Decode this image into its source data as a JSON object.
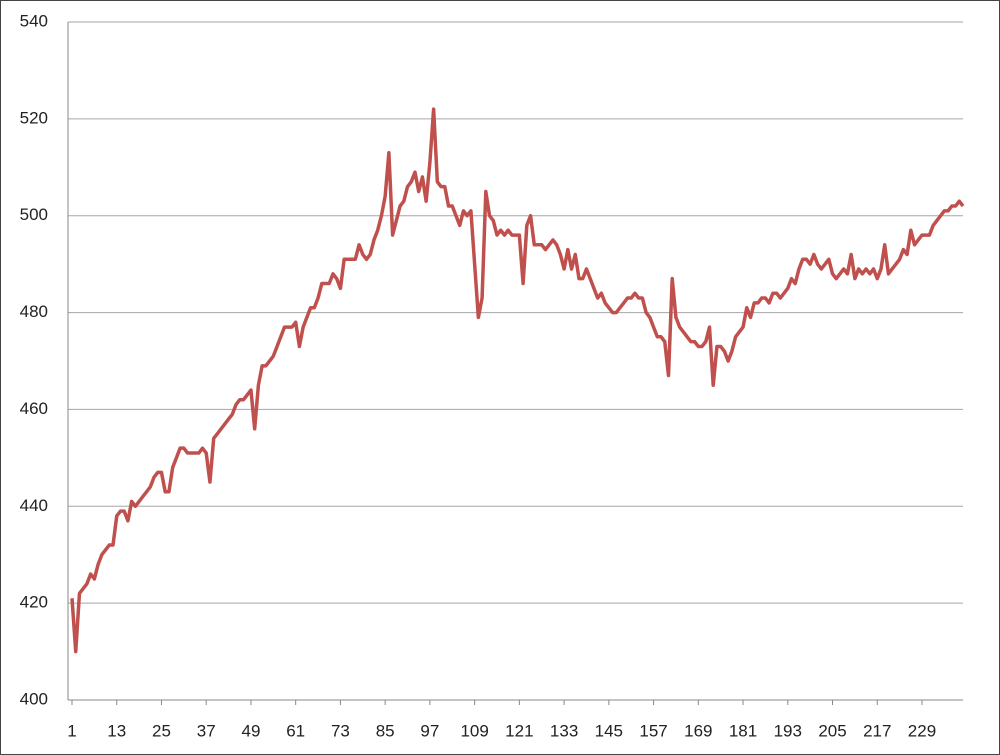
{
  "chart_data": {
    "type": "line",
    "x": [
      1,
      2,
      3,
      4,
      5,
      6,
      7,
      8,
      9,
      10,
      11,
      12,
      13,
      14,
      15,
      16,
      17,
      18,
      19,
      20,
      21,
      22,
      23,
      24,
      25,
      26,
      27,
      28,
      29,
      30,
      31,
      32,
      33,
      34,
      35,
      36,
      37,
      38,
      39,
      40,
      41,
      42,
      43,
      44,
      45,
      46,
      47,
      48,
      49,
      50,
      51,
      52,
      53,
      54,
      55,
      56,
      57,
      58,
      59,
      60,
      61,
      62,
      63,
      64,
      65,
      66,
      67,
      68,
      69,
      70,
      71,
      72,
      73,
      74,
      75,
      76,
      77,
      78,
      79,
      80,
      81,
      82,
      83,
      84,
      85,
      86,
      87,
      88,
      89,
      90,
      91,
      92,
      93,
      94,
      95,
      96,
      97,
      98,
      99,
      100,
      101,
      102,
      103,
      104,
      105,
      106,
      107,
      108,
      109,
      110,
      111,
      112,
      113,
      114,
      115,
      116,
      117,
      118,
      119,
      120,
      121,
      122,
      123,
      124,
      125,
      126,
      127,
      128,
      129,
      130,
      131,
      132,
      133,
      134,
      135,
      136,
      137,
      138,
      139,
      140,
      141,
      142,
      143,
      144,
      145,
      146,
      147,
      148,
      149,
      150,
      151,
      152,
      153,
      154,
      155,
      156,
      157,
      158,
      159,
      160,
      161,
      162,
      163,
      164,
      165,
      166,
      167,
      168,
      169,
      170,
      171,
      172,
      173,
      174,
      175,
      176,
      177,
      178,
      179,
      180,
      181,
      182,
      183,
      184,
      185,
      186,
      187,
      188,
      189,
      190,
      191,
      192,
      193,
      194,
      195,
      196,
      197,
      198,
      199,
      200,
      201,
      202,
      203,
      204,
      205,
      206,
      207,
      208,
      209,
      210,
      211,
      212,
      213,
      214,
      215,
      216,
      217,
      218,
      219,
      220,
      221,
      222,
      223,
      224,
      225,
      226,
      227,
      228,
      229,
      230,
      231,
      232,
      233,
      234,
      235,
      236,
      237,
      238,
      239,
      240
    ],
    "series": [
      {
        "color": "#c0504d",
        "values": [
          421,
          410,
          422,
          423,
          424,
          426,
          425,
          428,
          430,
          431,
          432,
          432,
          438,
          439,
          439,
          437,
          441,
          440,
          441,
          442,
          443,
          444,
          446,
          447,
          447,
          443,
          443,
          448,
          450,
          452,
          452,
          451,
          451,
          451,
          451,
          452,
          451,
          445,
          454,
          455,
          456,
          457,
          458,
          459,
          461,
          462,
          462,
          463,
          464,
          456,
          465,
          469,
          469,
          470,
          471,
          473,
          475,
          477,
          477,
          477,
          478,
          473,
          477,
          479,
          481,
          481,
          483,
          486,
          486,
          486,
          488,
          487,
          485,
          491,
          491,
          491,
          491,
          494,
          492,
          491,
          492,
          495,
          497,
          500,
          504,
          513,
          496,
          499,
          502,
          503,
          506,
          507,
          509,
          505,
          508,
          503,
          511,
          522,
          507,
          506,
          506,
          502,
          502,
          500,
          498,
          501,
          500,
          501,
          490,
          479,
          483,
          505,
          500,
          499,
          496,
          497,
          496,
          497,
          496,
          496,
          496,
          486,
          498,
          500,
          494,
          494,
          494,
          493,
          494,
          495,
          494,
          492,
          489,
          493,
          489,
          492,
          487,
          487,
          489,
          487,
          485,
          483,
          484,
          482,
          481,
          480,
          480,
          481,
          482,
          483,
          483,
          484,
          483,
          483,
          480,
          479,
          477,
          475,
          475,
          474,
          467,
          487,
          479,
          477,
          476,
          475,
          474,
          474,
          473,
          473,
          474,
          477,
          465,
          473,
          473,
          472,
          470,
          472,
          475,
          476,
          477,
          481,
          479,
          482,
          482,
          483,
          483,
          482,
          484,
          484,
          483,
          484,
          485,
          487,
          486,
          489,
          491,
          491,
          490,
          492,
          490,
          489,
          490,
          491,
          488,
          487,
          488,
          489,
          488,
          492,
          487,
          489,
          488,
          489,
          488,
          489,
          487,
          489,
          494,
          488,
          489,
          490,
          491,
          493,
          492,
          497,
          494,
          495,
          496,
          496,
          496,
          498,
          499,
          500,
          501,
          501,
          502,
          502,
          503,
          502
        ]
      }
    ],
    "xlim": [
      1,
      240
    ],
    "xticks": [
      1,
      13,
      25,
      37,
      49,
      61,
      73,
      85,
      97,
      109,
      121,
      133,
      145,
      157,
      169,
      181,
      193,
      205,
      217,
      229
    ],
    "ylim": [
      400,
      540
    ],
    "yticks": [
      400,
      420,
      440,
      460,
      480,
      500,
      520,
      540
    ],
    "grid": true
  }
}
